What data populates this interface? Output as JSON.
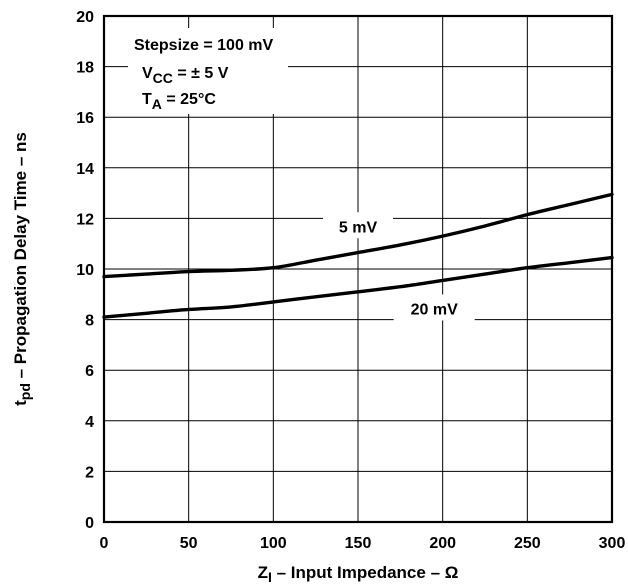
{
  "chart_data": {
    "type": "line",
    "xlabel": {
      "main": "Z",
      "sub": "I",
      "rest": " – Input Impedance – Ω"
    },
    "ylabel": {
      "main": "t",
      "sub": "pd",
      "rest": " – Propagation Delay Time – ns"
    },
    "xlim": [
      0,
      300
    ],
    "ylim": [
      0,
      20
    ],
    "x_ticks": [
      0,
      50,
      100,
      150,
      200,
      250,
      300
    ],
    "y_ticks": [
      0,
      2,
      4,
      6,
      8,
      10,
      12,
      14,
      16,
      18,
      20
    ],
    "grid": true,
    "annotations": {
      "stepsize": "Stepsize = 100 mV",
      "vcc": {
        "main": "V",
        "sub": "CC",
        "rest": " = ± 5 V"
      },
      "ta": {
        "main": "T",
        "sub": "A",
        "rest": " = 25°C"
      }
    },
    "series": [
      {
        "name": "5 mV",
        "x": [
          0,
          25,
          50,
          75,
          100,
          125,
          150,
          175,
          200,
          225,
          250,
          275,
          300
        ],
        "y": [
          9.7,
          9.8,
          9.9,
          9.95,
          10.05,
          10.35,
          10.65,
          10.95,
          11.3,
          11.7,
          12.15,
          12.55,
          12.95
        ]
      },
      {
        "name": "20 mV",
        "x": [
          0,
          25,
          50,
          75,
          100,
          125,
          150,
          175,
          200,
          225,
          250,
          275,
          300
        ],
        "y": [
          8.1,
          8.25,
          8.4,
          8.5,
          8.7,
          8.9,
          9.1,
          9.3,
          9.55,
          9.8,
          10.05,
          10.25,
          10.45
        ]
      }
    ],
    "series_label_positions": [
      {
        "series": "5 mV",
        "x": 150,
        "y": 11.65
      },
      {
        "series": "20 mV",
        "x": 195,
        "y": 8.4
      }
    ]
  }
}
